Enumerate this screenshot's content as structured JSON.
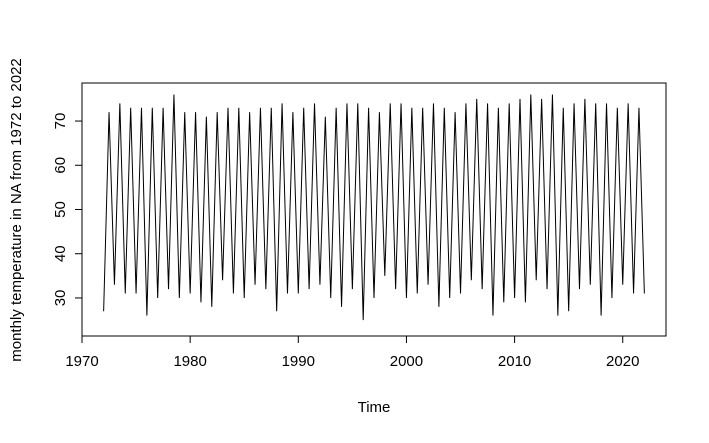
{
  "chart_data": {
    "type": "line",
    "x_label": "Time",
    "y_label": "monthly temperature in NA from 1972 to 2022",
    "x": [
      1972,
      1972.5,
      1973,
      1973.5,
      1974,
      1974.5,
      1975,
      1975.5,
      1976,
      1976.5,
      1977,
      1977.5,
      1978,
      1978.5,
      1979,
      1979.5,
      1980,
      1980.5,
      1981,
      1981.5,
      1982,
      1982.5,
      1983,
      1983.5,
      1984,
      1984.5,
      1985,
      1985.5,
      1986,
      1986.5,
      1987,
      1987.5,
      1988,
      1988.5,
      1989,
      1989.5,
      1990,
      1990.5,
      1991,
      1991.5,
      1992,
      1992.5,
      1993,
      1993.5,
      1994,
      1994.5,
      1995,
      1995.5,
      1996,
      1996.5,
      1997,
      1997.5,
      1998,
      1998.5,
      1999,
      1999.5,
      2000,
      2000.5,
      2001,
      2001.5,
      2002,
      2002.5,
      2003,
      2003.5,
      2004,
      2004.5,
      2005,
      2005.5,
      2006,
      2006.5,
      2007,
      2007.5,
      2008,
      2008.5,
      2009,
      2009.5,
      2010,
      2010.5,
      2011,
      2011.5,
      2012,
      2012.5,
      2013,
      2013.5,
      2014,
      2014.5,
      2015,
      2015.5,
      2016,
      2016.5,
      2017,
      2017.5,
      2018,
      2018.5,
      2019,
      2019.5,
      2020,
      2020.5,
      2021,
      2021.5,
      2022
    ],
    "series": [
      {
        "color": "#000000",
        "values": [
          27,
          72,
          33,
          74,
          31,
          73,
          31,
          73,
          26,
          73,
          30,
          73,
          32,
          76,
          30,
          72,
          31,
          72,
          29,
          71,
          28,
          72,
          34,
          73,
          31,
          73,
          30,
          72,
          33,
          73,
          32,
          73,
          27,
          74,
          31,
          72,
          31,
          73,
          32,
          74,
          33,
          71,
          30,
          73,
          28,
          74,
          32,
          74,
          25,
          73,
          30,
          72,
          35,
          74,
          32,
          74,
          30,
          73,
          31,
          73,
          33,
          74,
          28,
          73,
          30,
          72,
          31,
          74,
          34,
          75,
          32,
          74,
          26,
          73,
          29,
          74,
          30,
          75,
          29,
          76,
          34,
          75,
          32,
          76,
          26,
          73,
          27,
          74,
          32,
          75,
          33,
          74,
          26,
          74,
          30,
          73,
          33,
          74,
          31,
          73,
          31
        ]
      }
    ],
    "xlim": [
      1970,
      2024
    ],
    "xticks": [
      1970,
      1980,
      1990,
      2000,
      2010,
      2020
    ],
    "ylim": [
      21.4,
      78.6
    ],
    "yticks": [
      30,
      40,
      50,
      60,
      70
    ]
  }
}
